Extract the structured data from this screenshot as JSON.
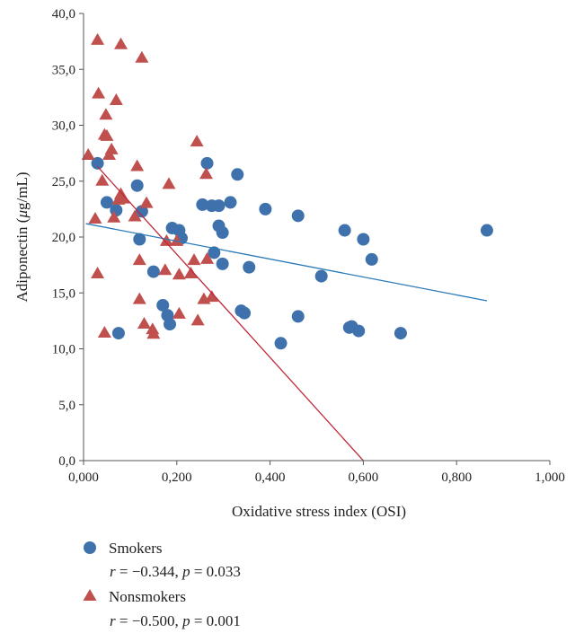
{
  "chart_data": {
    "type": "scatter",
    "xlabel": "Oxidative stress index (OSI)",
    "ylabel_pre": "Adiponectin (",
    "ylabel_mu": "μ",
    "ylabel_post": "g/mL)",
    "xlim": [
      0,
      1
    ],
    "ylim": [
      0,
      40
    ],
    "x_ticks": [
      0,
      0.2,
      0.4,
      0.6,
      0.8,
      1.0
    ],
    "x_tick_labels": [
      "0,000",
      "0,200",
      "0,400",
      "0,600",
      "0,800",
      "1,000"
    ],
    "y_ticks": [
      0,
      5,
      10,
      15,
      20,
      25,
      30,
      35,
      40
    ],
    "y_tick_labels": [
      "0,0",
      "5,0",
      "10,0",
      "15,0",
      "20,0",
      "25,0",
      "30,0",
      "35,0",
      "40,0"
    ],
    "grid": false,
    "legend_position": "bottom-left",
    "series": [
      {
        "name": "Smokers",
        "marker": "circle",
        "color": "#3f72ad",
        "trend_color": "#2a7ab8",
        "stat_r_sym": "r",
        "stat_r_val": " = −0.344, ",
        "stat_p_sym": "p",
        "stat_p_val": " = 0.033",
        "trendline": [
          [
            0.005,
            21.2
          ],
          [
            0.865,
            14.3
          ]
        ],
        "points": [
          [
            0.03,
            26.6
          ],
          [
            0.05,
            23.1
          ],
          [
            0.07,
            22.4
          ],
          [
            0.075,
            11.4
          ],
          [
            0.115,
            24.6
          ],
          [
            0.12,
            19.8
          ],
          [
            0.125,
            22.3
          ],
          [
            0.15,
            16.9
          ],
          [
            0.17,
            13.9
          ],
          [
            0.18,
            13.0
          ],
          [
            0.185,
            12.2
          ],
          [
            0.19,
            20.8
          ],
          [
            0.205,
            20.6
          ],
          [
            0.21,
            19.9
          ],
          [
            0.255,
            22.9
          ],
          [
            0.265,
            26.6
          ],
          [
            0.275,
            22.8
          ],
          [
            0.28,
            18.6
          ],
          [
            0.29,
            22.8
          ],
          [
            0.29,
            21.0
          ],
          [
            0.298,
            20.4
          ],
          [
            0.298,
            17.6
          ],
          [
            0.315,
            23.1
          ],
          [
            0.33,
            25.6
          ],
          [
            0.338,
            13.4
          ],
          [
            0.345,
            13.2
          ],
          [
            0.355,
            17.3
          ],
          [
            0.39,
            22.5
          ],
          [
            0.423,
            10.5
          ],
          [
            0.46,
            21.9
          ],
          [
            0.46,
            12.9
          ],
          [
            0.51,
            16.5
          ],
          [
            0.56,
            20.6
          ],
          [
            0.57,
            11.9
          ],
          [
            0.575,
            12.0
          ],
          [
            0.59,
            11.6
          ],
          [
            0.6,
            19.8
          ],
          [
            0.618,
            18.0
          ],
          [
            0.68,
            11.4
          ],
          [
            0.865,
            20.6
          ]
        ]
      },
      {
        "name": "Nonsmokers",
        "marker": "triangle",
        "color": "#c0504d",
        "trend_color": "#c0283a",
        "stat_r_sym": "r",
        "stat_r_val": " = −0.500, ",
        "stat_p_sym": "p",
        "stat_p_val": " = 0.001",
        "trendline": [
          [
            0.03,
            26.3
          ],
          [
            0.6,
            0.0
          ]
        ],
        "points": [
          [
            0.01,
            27.3
          ],
          [
            0.025,
            21.6
          ],
          [
            0.03,
            16.7
          ],
          [
            0.03,
            37.6
          ],
          [
            0.032,
            32.8
          ],
          [
            0.04,
            25.0
          ],
          [
            0.045,
            29.1
          ],
          [
            0.045,
            11.4
          ],
          [
            0.048,
            30.9
          ],
          [
            0.05,
            29.0
          ],
          [
            0.055,
            27.3
          ],
          [
            0.06,
            27.8
          ],
          [
            0.065,
            21.7
          ],
          [
            0.07,
            32.2
          ],
          [
            0.075,
            23.3
          ],
          [
            0.08,
            37.2
          ],
          [
            0.08,
            23.8
          ],
          [
            0.085,
            23.4
          ],
          [
            0.11,
            21.8
          ],
          [
            0.115,
            26.3
          ],
          [
            0.12,
            14.4
          ],
          [
            0.12,
            17.9
          ],
          [
            0.125,
            36.0
          ],
          [
            0.13,
            12.2
          ],
          [
            0.135,
            23.0
          ],
          [
            0.148,
            11.7
          ],
          [
            0.15,
            11.3
          ],
          [
            0.175,
            17.0
          ],
          [
            0.178,
            19.6
          ],
          [
            0.183,
            24.7
          ],
          [
            0.2,
            19.6
          ],
          [
            0.205,
            16.6
          ],
          [
            0.205,
            13.1
          ],
          [
            0.23,
            16.7
          ],
          [
            0.237,
            17.9
          ],
          [
            0.243,
            28.5
          ],
          [
            0.245,
            12.5
          ],
          [
            0.258,
            14.4
          ],
          [
            0.263,
            25.6
          ],
          [
            0.265,
            18.0
          ],
          [
            0.275,
            14.6
          ]
        ]
      }
    ]
  }
}
